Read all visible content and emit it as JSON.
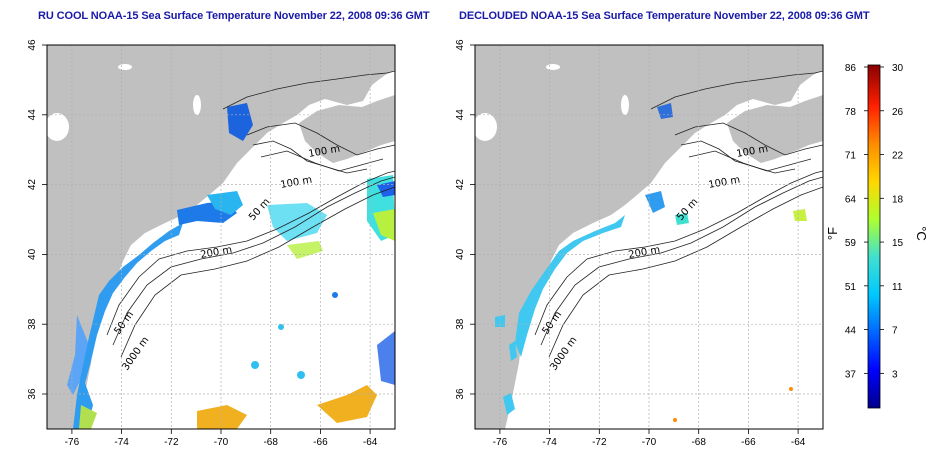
{
  "panels": [
    {
      "id": "left",
      "title": "RU COOL NOAA-15 Sea Surface Temperature November 22, 2008 09:36 GMT",
      "xticks": [
        "-76",
        "-74",
        "-72",
        "-70",
        "-68",
        "-66",
        "-64"
      ],
      "yticks": [
        "36",
        "38",
        "40",
        "42",
        "44",
        "46"
      ],
      "isobaths": [
        "100 m",
        "100 m",
        "50 m",
        "200 m",
        "50 m",
        "3000 m"
      ]
    },
    {
      "id": "right",
      "title": "DECLOUDED NOAA-15 Sea Surface Temperature November 22, 2008 09:36 GMT",
      "xticks": [
        "-76",
        "-74",
        "-72",
        "-70",
        "-68",
        "-66",
        "-64"
      ],
      "yticks": [
        "36",
        "38",
        "40",
        "42",
        "44",
        "46"
      ],
      "isobaths": [
        "100 m",
        "100 m",
        "50 m",
        "200 m",
        "50 m",
        "3000 m"
      ]
    }
  ],
  "map_extent": {
    "lon": [
      -77,
      -63
    ],
    "lat": [
      35,
      46
    ]
  },
  "colorbar": {
    "left_unit": "°F",
    "right_unit": "°C",
    "f_ticks": [
      "86",
      "78",
      "71",
      "64",
      "59",
      "51",
      "44",
      "37"
    ],
    "c_ticks": [
      "30",
      "26",
      "22",
      "18",
      "15",
      "11",
      "7",
      "3"
    ],
    "c_range": [
      0,
      30
    ],
    "colors": [
      "#00008b",
      "#0000ff",
      "#0066ff",
      "#00c8ff",
      "#40e0d0",
      "#adff2f",
      "#ffd700",
      "#ff8c00",
      "#ff2000",
      "#8b0000"
    ]
  },
  "colors": {
    "land": "#c0c0c0",
    "ocean": "#ffffff",
    "contour": "#222222",
    "grid": "#b0b0b0",
    "title": "#1a1aa8"
  }
}
